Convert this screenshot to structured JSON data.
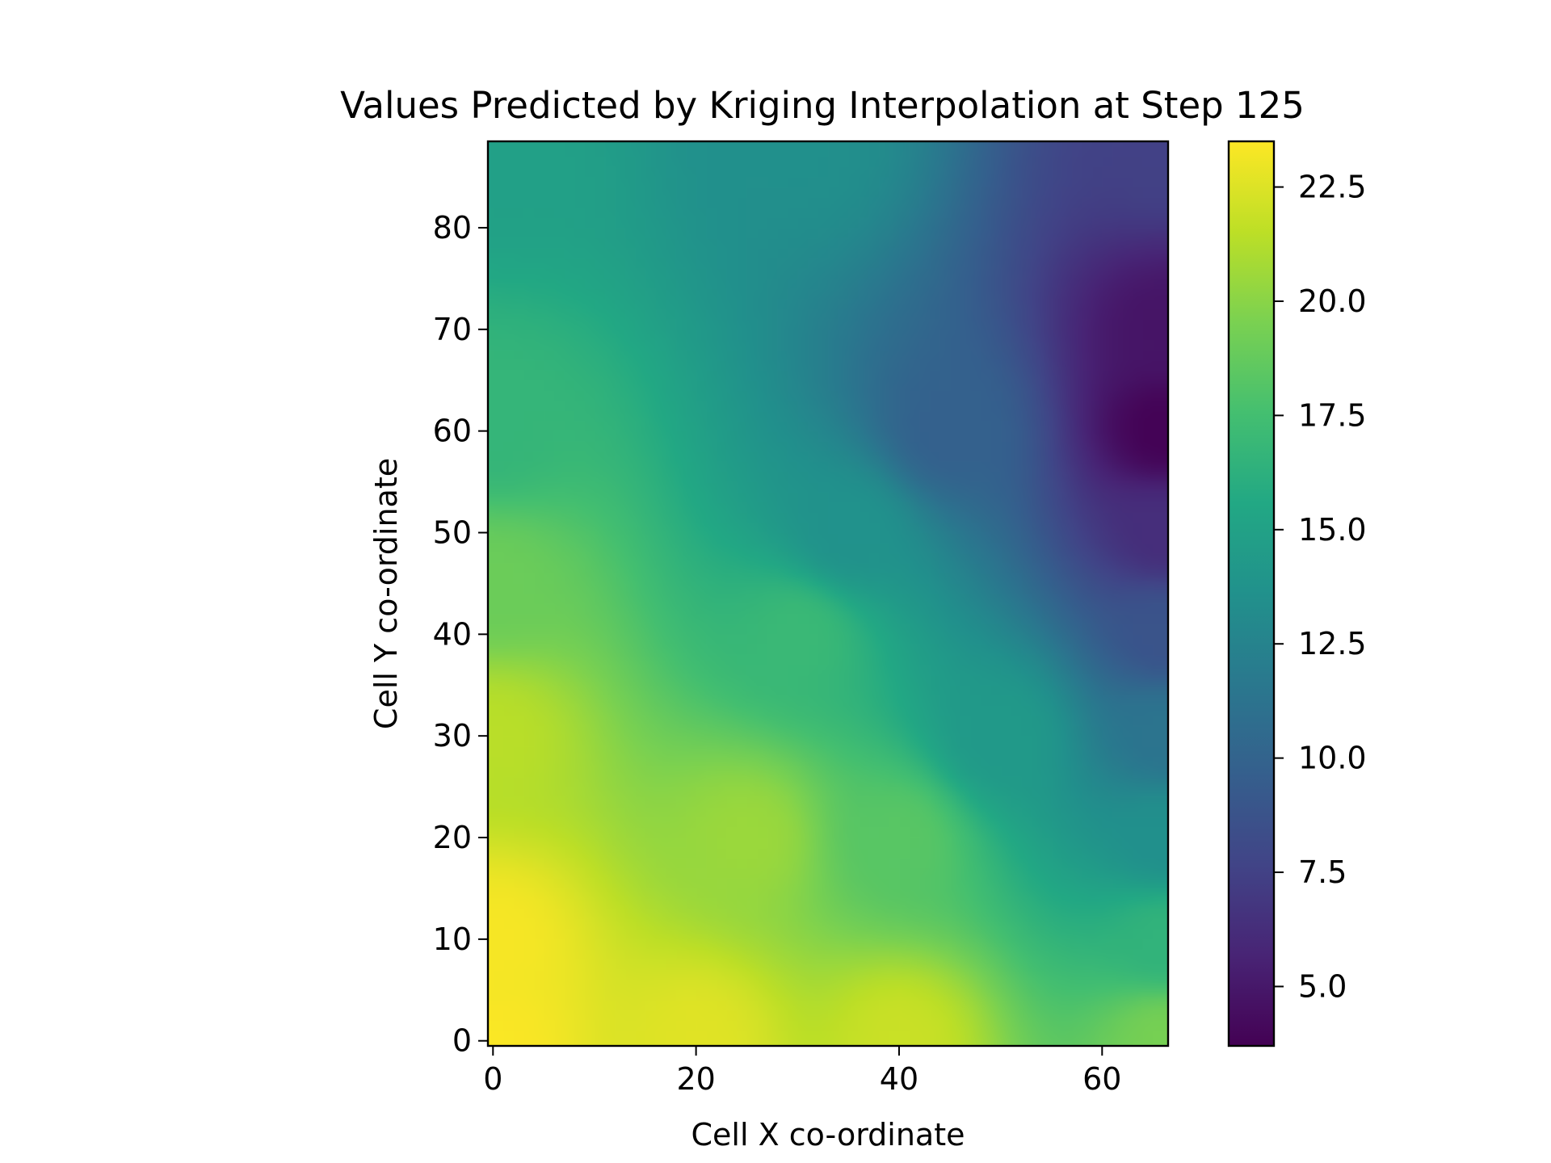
{
  "chart_data": {
    "type": "heatmap",
    "title": "Values Predicted by Kriging Interpolation at Step 125",
    "xlabel": "Cell X co-ordinate",
    "ylabel": "Cell Y co-ordinate",
    "xlim": [
      -0.5,
      66.5
    ],
    "ylim": [
      -0.5,
      88.5
    ],
    "x_ticks": [
      0,
      20,
      40,
      60
    ],
    "x_tick_labels": [
      "0",
      "20",
      "40",
      "60"
    ],
    "y_ticks": [
      0,
      10,
      20,
      30,
      40,
      50,
      60,
      70,
      80
    ],
    "y_tick_labels": [
      "0",
      "10",
      "20",
      "30",
      "40",
      "50",
      "60",
      "70",
      "80"
    ],
    "colorbar": {
      "range": [
        3.7,
        23.5
      ],
      "ticks": [
        5.0,
        7.5,
        10.0,
        12.5,
        15.0,
        17.5,
        20.0,
        22.5
      ],
      "tick_labels": [
        "5.0",
        "7.5",
        "10.0",
        "12.5",
        "15.0",
        "17.5",
        "20.0",
        "22.5"
      ],
      "colormap": "viridis"
    },
    "grid_shape": {
      "columns": 67,
      "rows": 89
    },
    "field_estimates": [
      {
        "x": 0,
        "y": 0,
        "value": 23.4
      },
      {
        "x": 0,
        "y": 10,
        "value": 23.3
      },
      {
        "x": 20,
        "y": 0,
        "value": 22.6
      },
      {
        "x": 40,
        "y": 0,
        "value": 21.9
      },
      {
        "x": 66,
        "y": 0,
        "value": 19.4
      },
      {
        "x": 66,
        "y": 10,
        "value": 16.5
      },
      {
        "x": 66,
        "y": 20,
        "value": 13.5
      },
      {
        "x": 66,
        "y": 30,
        "value": 11.3
      },
      {
        "x": 66,
        "y": 40,
        "value": 8.8
      },
      {
        "x": 66,
        "y": 50,
        "value": 6.3
      },
      {
        "x": 66,
        "y": 60,
        "value": 3.8
      },
      {
        "x": 66,
        "y": 70,
        "value": 4.8
      },
      {
        "x": 66,
        "y": 88,
        "value": 7.5
      },
      {
        "x": 0,
        "y": 30,
        "value": 21.4
      },
      {
        "x": 0,
        "y": 45,
        "value": 19.0
      },
      {
        "x": 0,
        "y": 60,
        "value": 16.7
      },
      {
        "x": 0,
        "y": 88,
        "value": 14.9
      },
      {
        "x": 30,
        "y": 88,
        "value": 13.5
      },
      {
        "x": 30,
        "y": 40,
        "value": 17.0
      },
      {
        "x": 35,
        "y": 50,
        "value": 13.7
      },
      {
        "x": 45,
        "y": 60,
        "value": 9.8
      },
      {
        "x": 50,
        "y": 30,
        "value": 14.3
      },
      {
        "x": 25,
        "y": 20,
        "value": 20.5
      },
      {
        "x": 40,
        "y": 20,
        "value": 18.3
      }
    ]
  }
}
